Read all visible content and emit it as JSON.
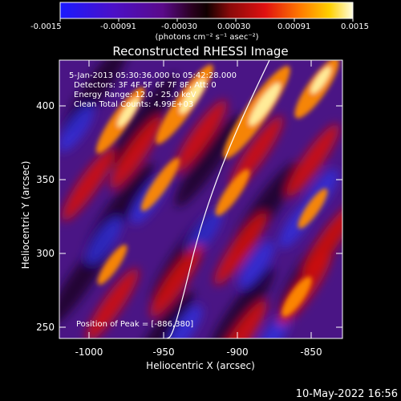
{
  "colorbar": {
    "tick_labels": [
      "-0.0015",
      "-0.00091",
      "-0.00030",
      "0.00030",
      "0.00091",
      "0.0015"
    ],
    "unit_label": "(photons cm⁻² s⁻¹ asec⁻²)"
  },
  "title": "Reconstructed RHESSI Image",
  "annotations": {
    "time_range": "5-Jan-2013 05:30:36.000 to 05:42:28.000",
    "detectors": "Detectors: 3F 4F 5F 6F 7F 8F, Att: 0",
    "energy": "Energy Range: 12.0 - 25.0 keV",
    "method": "Clean     Total Counts: 4.99E+03",
    "peak": "Position of Peak = [-886,380]"
  },
  "x_axis": {
    "label": "Heliocentric X (arcsec)",
    "ticks": [
      "-1000",
      "-950",
      "-900",
      "-850"
    ],
    "range": [
      -1020,
      -820
    ]
  },
  "y_axis": {
    "label": "Heliocentric Y (arcsec)",
    "ticks": [
      "400",
      "350",
      "300",
      "250"
    ],
    "range": [
      235,
      430
    ]
  },
  "timestamp": "10-May-2022 16:56",
  "colors": {
    "background": "#000000",
    "text": "#ffffff",
    "limb": "#ffffff"
  }
}
